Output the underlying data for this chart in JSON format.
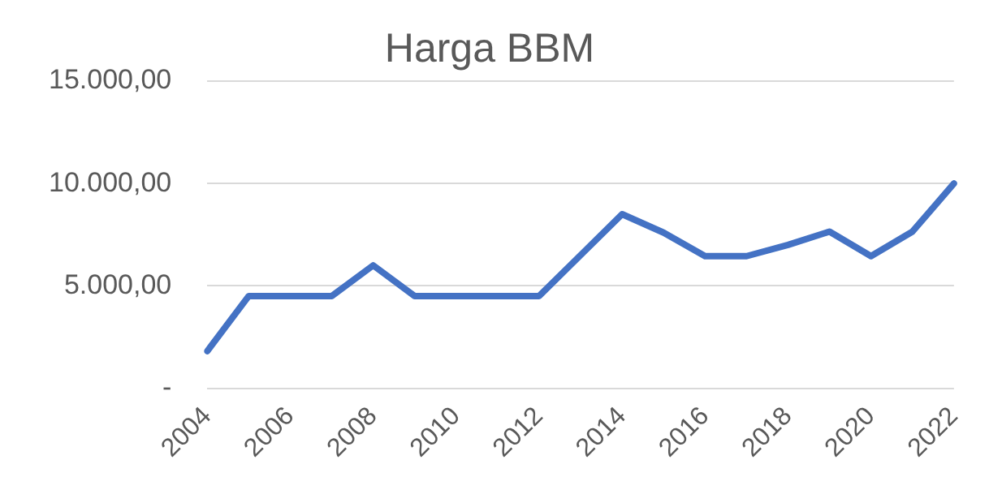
{
  "chart_data": {
    "type": "line",
    "title": "Harga BBM",
    "categories": [
      "2004",
      null,
      "2006",
      null,
      "2008",
      null,
      "2010",
      null,
      "2012",
      null,
      "2014",
      null,
      "2016",
      null,
      "2018",
      null,
      "2020",
      null,
      "2022"
    ],
    "series": [
      {
        "color": "#4472c4",
        "values": [
          1810,
          4500,
          4500,
          4500,
          6000,
          4500,
          4500,
          4500,
          4500,
          6500,
          8500,
          7600,
          6450,
          6450,
          7000,
          7650,
          6450,
          7650,
          10000
        ]
      }
    ],
    "ylim": [
      0,
      15000
    ],
    "yticks": [
      {
        "value": 0,
        "label": "-"
      },
      {
        "value": 5000,
        "label": "5.000,00"
      },
      {
        "value": 10000,
        "label": "10.000,00"
      },
      {
        "value": 15000,
        "label": "15.000,00"
      }
    ],
    "grid": "y",
    "legend": false,
    "marker": "none",
    "line_style": "solid"
  }
}
